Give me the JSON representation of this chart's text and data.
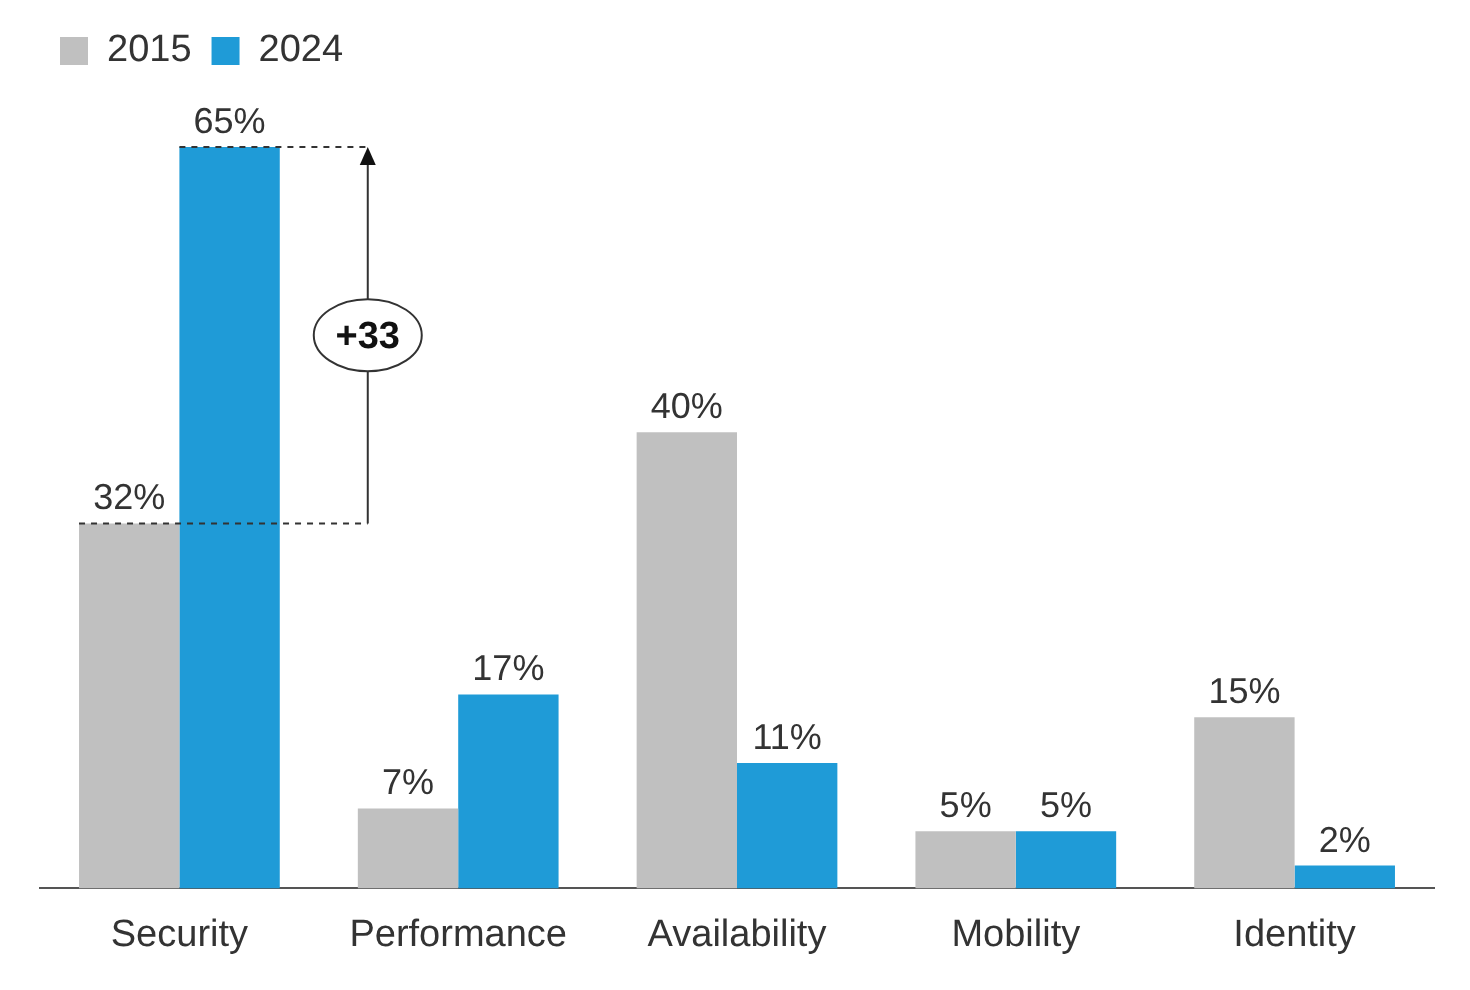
{
  "chart_data": {
    "type": "bar",
    "categories": [
      "Security",
      "Performance",
      "Availability",
      "Mobility",
      "Identity"
    ],
    "series": [
      {
        "name": "2015",
        "color": "#c0c0c0",
        "values": [
          32,
          7,
          40,
          5,
          15
        ],
        "value_labels": [
          "32%",
          "7%",
          "40%",
          "5%",
          "15%"
        ]
      },
      {
        "name": "2024",
        "color": "#1f9bd7",
        "values": [
          65,
          17,
          11,
          5,
          2
        ],
        "value_labels": [
          "65%",
          "17%",
          "11%",
          "5%",
          "2%"
        ]
      }
    ],
    "legend": "top left",
    "grid": false,
    "annotations": [
      "+33"
    ]
  }
}
